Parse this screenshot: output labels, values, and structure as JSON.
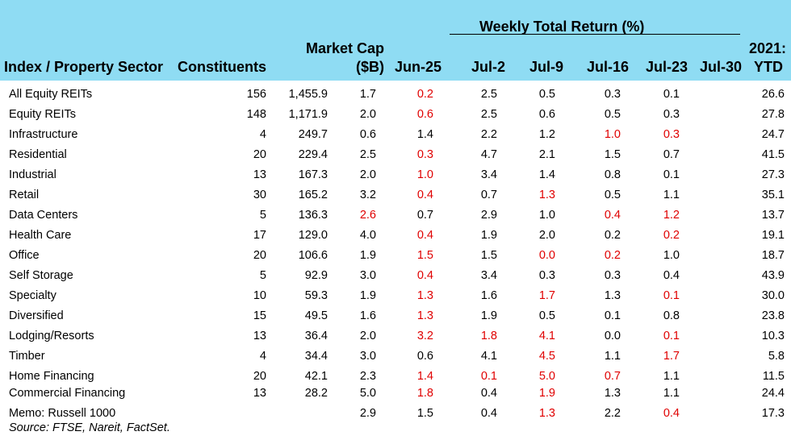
{
  "header": {
    "weekly_title": "Weekly Total Return (%)",
    "col_sector": "Index / Property Sector",
    "col_constituents": "Constituents",
    "col_mktcap_line1": "Market Cap",
    "col_mktcap_line2": "($B)",
    "weeks": [
      "Jun-25",
      "Jul-2",
      "Jul-9",
      "Jul-16",
      "Jul-23",
      "Jul-30"
    ],
    "col_ytd_line1": "2021:",
    "col_ytd_line2": "YTD"
  },
  "colors": {
    "header_bg": "#8fdcf3",
    "negative": "#e00000"
  },
  "rows": [
    {
      "name": "All Equity REITs",
      "constituents": "156",
      "mktcap": "1,455.9",
      "w": [
        "1.7",
        "0.2",
        "2.5",
        "0.5",
        "0.3",
        "0.1"
      ],
      "neg": [
        false,
        true,
        false,
        false,
        false,
        false
      ],
      "ytd": "26.6"
    },
    {
      "name": "Equity REITs",
      "constituents": "148",
      "mktcap": "1,171.9",
      "w": [
        "2.0",
        "0.6",
        "2.5",
        "0.6",
        "0.5",
        "0.3"
      ],
      "neg": [
        false,
        true,
        false,
        false,
        false,
        false
      ],
      "ytd": "27.8"
    },
    {
      "name": "Infrastructure",
      "constituents": "4",
      "mktcap": "249.7",
      "w": [
        "0.6",
        "1.4",
        "2.2",
        "1.2",
        "1.0",
        "0.3"
      ],
      "neg": [
        false,
        false,
        false,
        false,
        true,
        true
      ],
      "ytd": "24.7"
    },
    {
      "name": "Residential",
      "constituents": "20",
      "mktcap": "229.4",
      "w": [
        "2.5",
        "0.3",
        "4.7",
        "2.1",
        "1.5",
        "0.7"
      ],
      "neg": [
        false,
        true,
        false,
        false,
        false,
        false
      ],
      "ytd": "41.5"
    },
    {
      "name": "Industrial",
      "constituents": "13",
      "mktcap": "167.3",
      "w": [
        "2.0",
        "1.0",
        "3.4",
        "1.4",
        "0.8",
        "0.1"
      ],
      "neg": [
        false,
        true,
        false,
        false,
        false,
        false
      ],
      "ytd": "27.3"
    },
    {
      "name": "Retail",
      "constituents": "30",
      "mktcap": "165.2",
      "w": [
        "3.2",
        "0.4",
        "0.7",
        "1.3",
        "0.5",
        "1.1"
      ],
      "neg": [
        false,
        true,
        false,
        true,
        false,
        false
      ],
      "ytd": "35.1"
    },
    {
      "name": "Data Centers",
      "constituents": "5",
      "mktcap": "136.3",
      "w": [
        "2.6",
        "0.7",
        "2.9",
        "1.0",
        "0.4",
        "1.2"
      ],
      "neg": [
        true,
        false,
        false,
        false,
        true,
        true
      ],
      "ytd": "13.7"
    },
    {
      "name": "Health Care",
      "constituents": "17",
      "mktcap": "129.0",
      "w": [
        "4.0",
        "0.4",
        "1.9",
        "2.0",
        "0.2",
        "0.2"
      ],
      "neg": [
        false,
        true,
        false,
        false,
        false,
        true
      ],
      "ytd": "19.1"
    },
    {
      "name": "Office",
      "constituents": "20",
      "mktcap": "106.6",
      "w": [
        "1.9",
        "1.5",
        "1.5",
        "0.0",
        "0.2",
        "1.0"
      ],
      "neg": [
        false,
        true,
        false,
        true,
        true,
        false
      ],
      "ytd": "18.7"
    },
    {
      "name": "Self Storage",
      "constituents": "5",
      "mktcap": "92.9",
      "w": [
        "3.0",
        "0.4",
        "3.4",
        "0.3",
        "0.3",
        "0.4"
      ],
      "neg": [
        false,
        true,
        false,
        false,
        false,
        false
      ],
      "ytd": "43.9"
    },
    {
      "name": "Specialty",
      "constituents": "10",
      "mktcap": "59.3",
      "w": [
        "1.9",
        "1.3",
        "1.6",
        "1.7",
        "1.3",
        "0.1"
      ],
      "neg": [
        false,
        true,
        false,
        true,
        false,
        true
      ],
      "ytd": "30.0"
    },
    {
      "name": "Diversified",
      "constituents": "15",
      "mktcap": "49.5",
      "w": [
        "1.6",
        "1.3",
        "1.9",
        "0.5",
        "0.1",
        "0.8"
      ],
      "neg": [
        false,
        true,
        false,
        false,
        false,
        false
      ],
      "ytd": "23.8"
    },
    {
      "name": "Lodging/Resorts",
      "constituents": "13",
      "mktcap": "36.4",
      "w": [
        "2.0",
        "3.2",
        "1.8",
        "4.1",
        "0.0",
        "0.1"
      ],
      "neg": [
        false,
        true,
        true,
        true,
        false,
        true
      ],
      "ytd": "10.3"
    },
    {
      "name": "Timber",
      "constituents": "4",
      "mktcap": "34.4",
      "w": [
        "3.0",
        "0.6",
        "4.1",
        "4.5",
        "1.1",
        "1.7"
      ],
      "neg": [
        false,
        false,
        false,
        true,
        false,
        true
      ],
      "ytd": "5.8"
    },
    {
      "name": "Home Financing",
      "constituents": "20",
      "mktcap": "42.1",
      "w": [
        "2.3",
        "1.4",
        "0.1",
        "5.0",
        "0.7",
        "1.1"
      ],
      "neg": [
        false,
        true,
        true,
        true,
        true,
        false
      ],
      "ytd": "11.5"
    },
    {
      "name": "Commercial Financing",
      "constituents": "13",
      "mktcap": "28.2",
      "w": [
        "5.0",
        "1.8",
        "0.4",
        "1.9",
        "1.3",
        "1.1"
      ],
      "neg": [
        false,
        true,
        false,
        true,
        false,
        false
      ],
      "ytd": "24.4"
    },
    {
      "name": "Memo: Russell 1000",
      "constituents": "",
      "mktcap": "",
      "w": [
        "2.9",
        "1.5",
        "0.4",
        "1.3",
        "2.2",
        "0.4"
      ],
      "neg": [
        false,
        false,
        false,
        true,
        false,
        true
      ],
      "ytd": "17.3"
    }
  ],
  "source": "Source: FTSE, Nareit, FactSet."
}
